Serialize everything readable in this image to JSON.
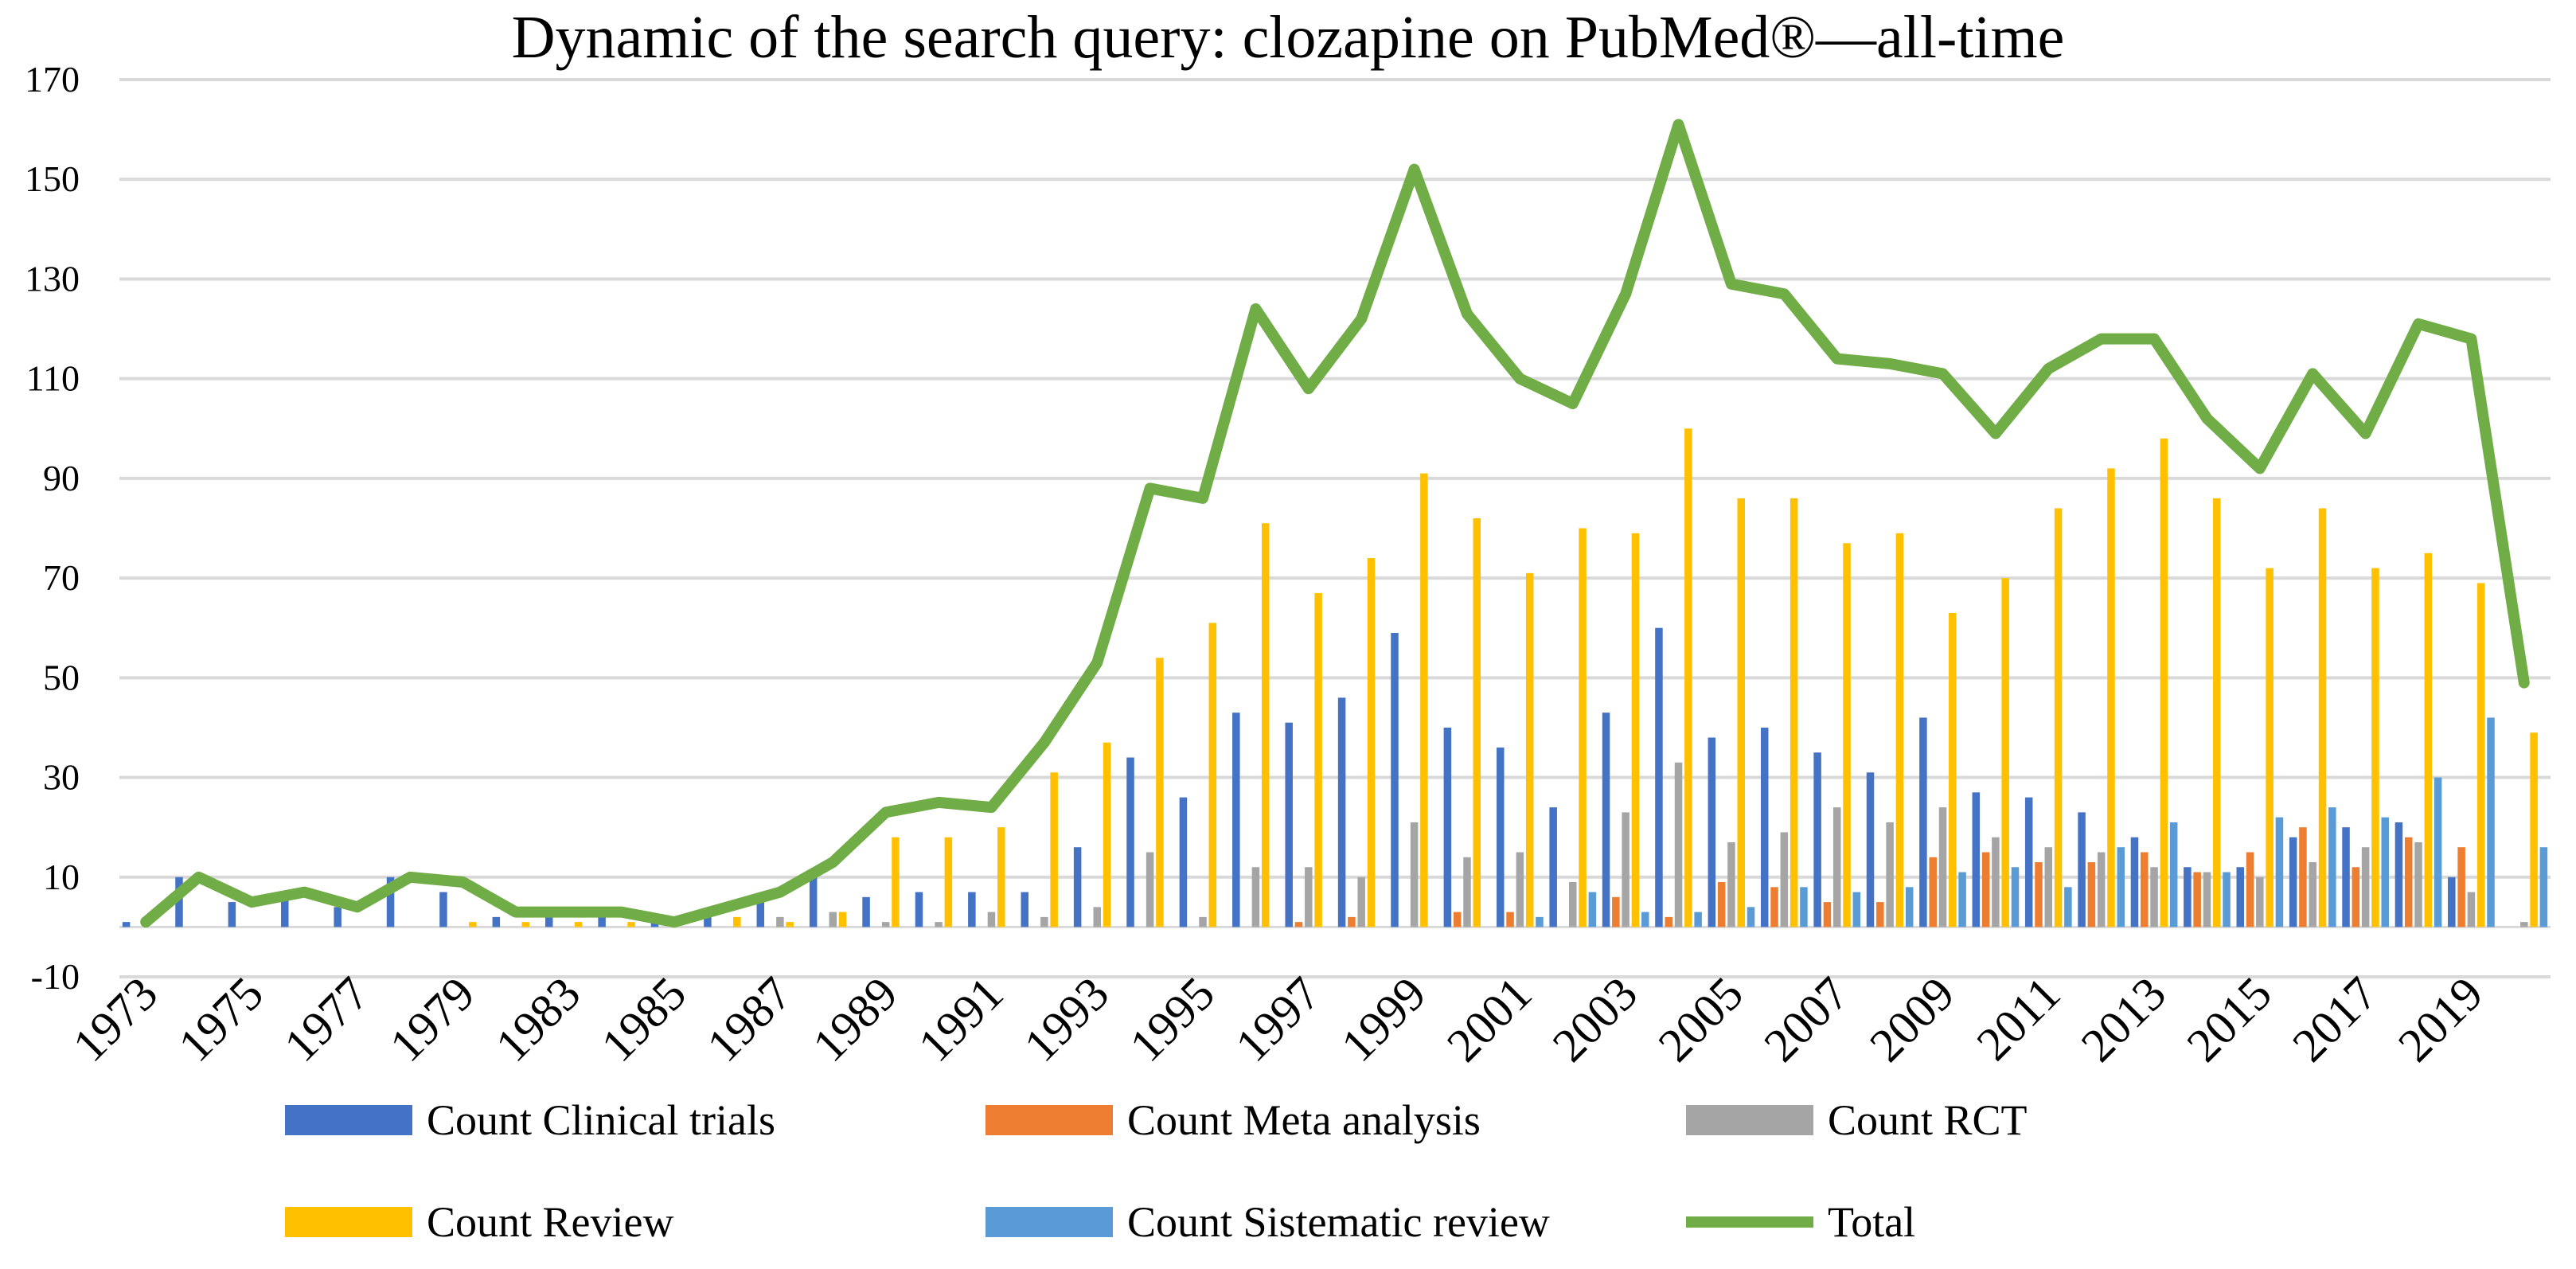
{
  "chart_data": {
    "type": "bar",
    "title": "Dynamic of the search query: clozapine on PubMed®—all-time",
    "xlabel": "",
    "ylabel": "",
    "ylim": [
      -10,
      170
    ],
    "yticks": [
      -10,
      10,
      30,
      50,
      70,
      90,
      110,
      130,
      150,
      170
    ],
    "grid": true,
    "legend_position": "bottom",
    "x_tick_labels": [
      "1973",
      "1975",
      "1977",
      "1979",
      "1983",
      "1985",
      "1987",
      "1989",
      "1991",
      "1993",
      "1995",
      "1997",
      "1999",
      "2001",
      "2003",
      "2005",
      "2007",
      "2009",
      "2011",
      "2013",
      "2015",
      "2017",
      "2019"
    ],
    "categories": [
      "1973",
      "1974",
      "1975",
      "1976",
      "1977",
      "1978",
      "1979",
      "1980",
      "1983",
      "1984",
      "1985",
      "1986",
      "1987",
      "1988",
      "1989",
      "1990",
      "1991",
      "1992",
      "1993",
      "1994",
      "1995",
      "1996",
      "1997",
      "1998",
      "1999",
      "2000",
      "2001",
      "2002",
      "2003",
      "2004",
      "2005",
      "2006",
      "2007",
      "2008",
      "2009",
      "2010",
      "2011",
      "2012",
      "2013",
      "2014",
      "2015",
      "2016",
      "2017",
      "2018",
      "2019",
      "2020"
    ],
    "series": [
      {
        "name": "Count Clinical trials",
        "kind": "bar",
        "color": "#4472C4",
        "values": [
          1,
          10,
          5,
          7,
          4,
          10,
          7,
          2,
          3,
          3,
          1,
          3,
          5,
          11,
          6,
          7,
          7,
          7,
          16,
          34,
          26,
          43,
          41,
          46,
          59,
          40,
          36,
          24,
          43,
          60,
          38,
          40,
          35,
          31,
          42,
          27,
          26,
          23,
          18,
          12,
          12,
          18,
          20,
          21,
          10,
          0
        ]
      },
      {
        "name": "Count Meta analysis",
        "kind": "bar",
        "color": "#ED7D31",
        "values": [
          0,
          0,
          0,
          0,
          0,
          0,
          0,
          0,
          0,
          0,
          0,
          0,
          0,
          0,
          0,
          0,
          0,
          0,
          0,
          0,
          0,
          0,
          1,
          2,
          0,
          3,
          3,
          0,
          6,
          2,
          9,
          8,
          5,
          5,
          14,
          15,
          13,
          13,
          15,
          11,
          15,
          20,
          12,
          18,
          16,
          0
        ]
      },
      {
        "name": "Count RCT",
        "kind": "bar",
        "color": "#A5A5A5",
        "values": [
          0,
          0,
          0,
          0,
          0,
          0,
          0,
          0,
          0,
          0,
          0,
          0,
          2,
          3,
          1,
          1,
          3,
          2,
          4,
          15,
          2,
          12,
          12,
          10,
          21,
          14,
          15,
          9,
          23,
          33,
          17,
          19,
          24,
          21,
          24,
          18,
          16,
          15,
          12,
          11,
          10,
          13,
          16,
          17,
          7,
          1
        ]
      },
      {
        "name": "Count Review",
        "kind": "bar",
        "color": "#FFC000",
        "values": [
          0,
          0,
          0,
          0,
          0,
          0,
          1,
          1,
          1,
          1,
          0,
          2,
          1,
          3,
          18,
          18,
          20,
          31,
          37,
          54,
          61,
          81,
          67,
          74,
          91,
          82,
          71,
          80,
          79,
          100,
          86,
          86,
          77,
          79,
          63,
          70,
          84,
          92,
          98,
          86,
          72,
          84,
          72,
          75,
          69,
          39
        ]
      },
      {
        "name": "Count Sistematic review",
        "kind": "bar",
        "color": "#5B9BD5",
        "values": [
          0,
          0,
          0,
          0,
          0,
          0,
          0,
          0,
          0,
          0,
          0,
          0,
          0,
          0,
          0,
          0,
          0,
          0,
          0,
          0,
          0,
          0,
          0,
          0,
          0,
          0,
          2,
          7,
          3,
          3,
          4,
          8,
          7,
          8,
          11,
          12,
          8,
          16,
          21,
          11,
          22,
          24,
          22,
          30,
          42,
          16
        ]
      },
      {
        "name": "Total",
        "kind": "line",
        "color": "#70AD47",
        "values": [
          1,
          10,
          5,
          7,
          4,
          10,
          9,
          3,
          3,
          3,
          1,
          4,
          7,
          13,
          23,
          25,
          24,
          37,
          53,
          88,
          86,
          124,
          108,
          122,
          152,
          123,
          110,
          105,
          127,
          161,
          129,
          127,
          114,
          113,
          111,
          99,
          112,
          118,
          118,
          102,
          92,
          111,
          99,
          121,
          118,
          49
        ]
      }
    ]
  }
}
